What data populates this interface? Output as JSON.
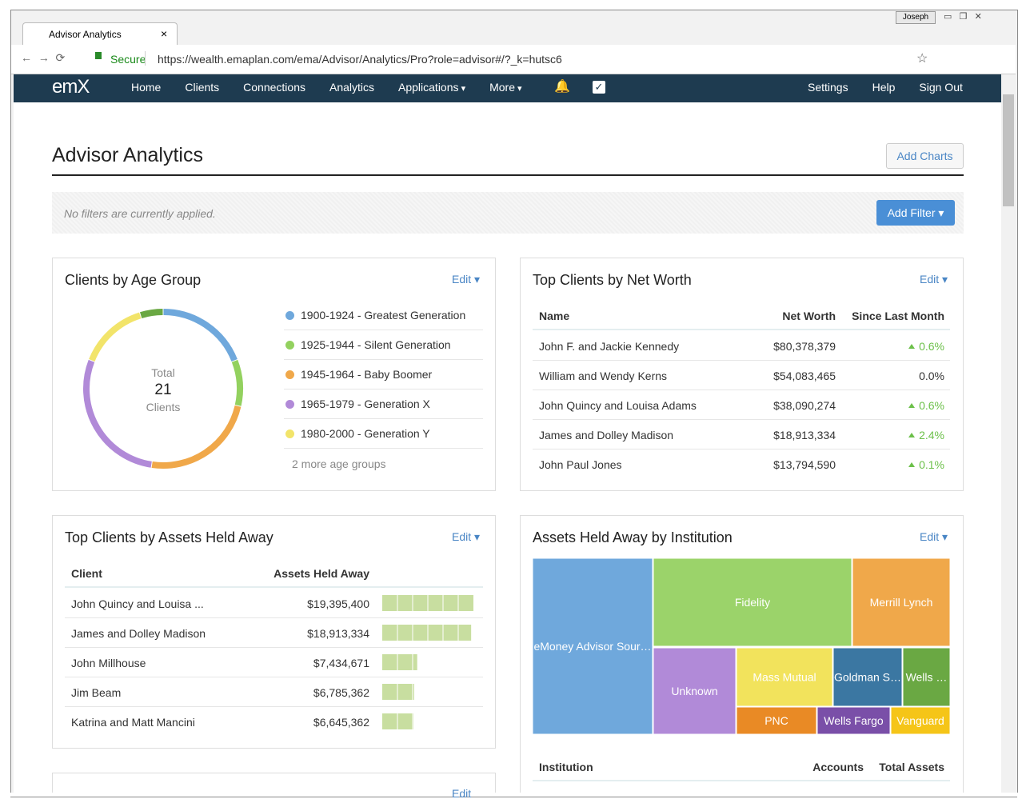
{
  "browser": {
    "tab_title": "Advisor Analytics",
    "secure": "Secure",
    "url": "https://wealth.emaplan.com/ema/Advisor/Analytics/Pro?role=advisor#/?_k=hutsc6",
    "user": "Joseph"
  },
  "nav": {
    "logo": "emX",
    "left": [
      "Home",
      "Clients",
      "Connections",
      "Analytics",
      "Applications",
      "More"
    ],
    "right": [
      "Settings",
      "Help",
      "Sign Out"
    ]
  },
  "page": {
    "title": "Advisor Analytics",
    "add_charts": "Add Charts",
    "filter_text": "No filters are currently applied.",
    "add_filter": "Add Filter"
  },
  "age_card": {
    "title": "Clients by Age Group",
    "edit": "Edit",
    "center_top": "Total",
    "total": 21,
    "center_bottom": "Clients",
    "groups": [
      {
        "label": "1900-1924 - Greatest Generation",
        "color": "#6fa8dc",
        "value": 4
      },
      {
        "label": "1925-1944 - Silent Generation",
        "color": "#93d15f",
        "value": 2
      },
      {
        "label": "1945-1964 - Baby Boomer",
        "color": "#f0a84a",
        "value": 5
      },
      {
        "label": "1965-1979 - Generation X",
        "color": "#b18ad8",
        "value": 6
      },
      {
        "label": "1980-2000 - Generation Y",
        "color": "#f2e46a",
        "value": 3
      }
    ],
    "more": {
      "label": "2 more age groups",
      "color": "#6aa843",
      "value": 1
    }
  },
  "networth_card": {
    "title": "Top Clients by Net Worth",
    "edit": "Edit",
    "headers": [
      "Name",
      "Net Worth",
      "Since Last Month"
    ],
    "rows": [
      {
        "name": "John F. and Jackie Kennedy",
        "worth": "$80,378,379",
        "change": "0.6%",
        "trend": "up"
      },
      {
        "name": "William and Wendy Kerns",
        "worth": "$54,083,465",
        "change": "0.0%",
        "trend": "flat"
      },
      {
        "name": "John Quincy and Louisa Adams",
        "worth": "$38,090,274",
        "change": "0.6%",
        "trend": "up"
      },
      {
        "name": "James and Dolley Madison",
        "worth": "$18,913,334",
        "change": "2.4%",
        "trend": "up"
      },
      {
        "name": "John Paul Jones",
        "worth": "$13,794,590",
        "change": "0.1%",
        "trend": "up"
      }
    ]
  },
  "assets_card": {
    "title": "Top Clients by Assets Held Away",
    "edit": "Edit",
    "headers": [
      "Client",
      "Assets Held Away"
    ],
    "rows": [
      {
        "client": "John Quincy and Louisa ...",
        "label": "$19,395,400",
        "value": 19395400
      },
      {
        "client": "James and Dolley Madison",
        "label": "$18,913,334",
        "value": 18913334
      },
      {
        "client": "John Millhouse",
        "label": "$7,434,671",
        "value": 7434671
      },
      {
        "client": "Jim Beam",
        "label": "$6,785,362",
        "value": 6785362
      },
      {
        "client": "Katrina and Matt Mancini",
        "label": "$6,645,362",
        "value": 6645362
      }
    ]
  },
  "institution_card": {
    "title": "Assets Held Away by Institution",
    "edit": "Edit",
    "tiles": [
      {
        "label": "eMoney Advisor Sour…",
        "color": "#6fa8dc",
        "value": 28.7
      },
      {
        "label": "Fidelity",
        "color": "#9bd36a",
        "value": 23.8
      },
      {
        "label": "Merrill Lynch",
        "color": "#f0a84a",
        "value": 11.7
      },
      {
        "label": "Unknown",
        "color": "#b18ad8",
        "value": 9.9
      },
      {
        "label": "Mass Mutual",
        "color": "#f2e35c",
        "value": 7.6
      },
      {
        "label": "Goldman S…",
        "color": "#3b77a2",
        "value": 5.5
      },
      {
        "label": "Wells …",
        "color": "#6aa843",
        "value": 3.8
      },
      {
        "label": "PNC",
        "color": "#e98a25",
        "value": 3.2
      },
      {
        "label": "Wells Fargo",
        "color": "#7a4fa8",
        "value": 2.9
      },
      {
        "label": "Vanguard",
        "color": "#f5c518",
        "value": 2.3
      }
    ],
    "headers": [
      "Institution",
      "Accounts",
      "Total Assets"
    ]
  },
  "third_card": {
    "edit": "Edit"
  }
}
